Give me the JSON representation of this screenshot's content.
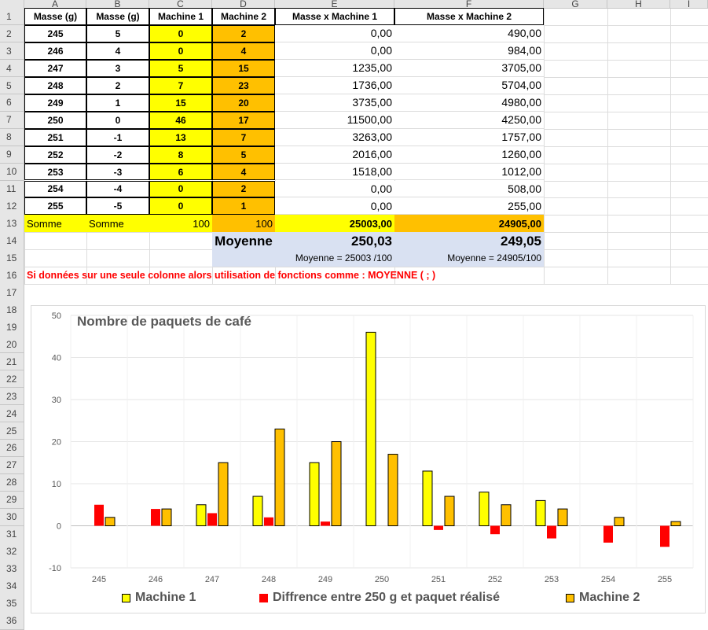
{
  "columns": [
    "A",
    "B",
    "C",
    "D",
    "E",
    "F",
    "G",
    "H",
    "I"
  ],
  "rows": [
    "1",
    "2",
    "3",
    "4",
    "5",
    "6",
    "7",
    "8",
    "9",
    "10",
    "11",
    "12",
    "13",
    "14",
    "15",
    "16",
    "17",
    "18",
    "19",
    "20",
    "21",
    "22",
    "23",
    "24",
    "25",
    "26",
    "27",
    "28",
    "29",
    "30",
    "31",
    "32",
    "33",
    "34",
    "35",
    "36"
  ],
  "headers": [
    "Masse (g)",
    "Masse (g)",
    "Machine 1",
    "Machine 2",
    "Masse x Machine 1",
    "Masse x Machine 2"
  ],
  "table": [
    [
      "245",
      "5",
      "0",
      "2",
      "0,00",
      "490,00"
    ],
    [
      "246",
      "4",
      "0",
      "4",
      "0,00",
      "984,00"
    ],
    [
      "247",
      "3",
      "5",
      "15",
      "1235,00",
      "3705,00"
    ],
    [
      "248",
      "2",
      "7",
      "23",
      "1736,00",
      "5704,00"
    ],
    [
      "249",
      "1",
      "15",
      "20",
      "3735,00",
      "4980,00"
    ],
    [
      "250",
      "0",
      "46",
      "17",
      "11500,00",
      "4250,00"
    ],
    [
      "251",
      "-1",
      "13",
      "7",
      "3263,00",
      "1757,00"
    ],
    [
      "252",
      "-2",
      "8",
      "5",
      "2016,00",
      "1260,00"
    ],
    [
      "253",
      "-3",
      "6",
      "4",
      "1518,00",
      "1012,00"
    ],
    [
      "254",
      "-4",
      "0",
      "2",
      "0,00",
      "508,00"
    ],
    [
      "255",
      "-5",
      "0",
      "1",
      "0,00",
      "255,00"
    ]
  ],
  "sum_row": {
    "a": "Somme",
    "b": "Somme",
    "c": "100",
    "d": "100",
    "e": "25003,00",
    "f": "24905,00"
  },
  "avg_row": {
    "label": "Moyenne",
    "e": "250,03",
    "f": "249,05"
  },
  "avg_formula": {
    "e": "Moyenne = 25003 /100",
    "f": "Moyenne = 24905/100"
  },
  "note": "Si données sur une seule colonne alors utilisation de fonctions comme : MOYENNE ( ;  )",
  "colors": {
    "machine1": "#ffff00",
    "machine2": "#ffc000",
    "diff": "#ff0000",
    "avg_bg": "#d9e1f2",
    "note": "#ff0000"
  },
  "chart_data": {
    "type": "bar",
    "title": "Nombre de paquets de café",
    "categories": [
      "245",
      "246",
      "247",
      "248",
      "249",
      "250",
      "251",
      "252",
      "253",
      "254",
      "255"
    ],
    "series": [
      {
        "name": "Machine 1",
        "values": [
          0,
          0,
          5,
          7,
          15,
          46,
          13,
          8,
          6,
          0,
          0
        ]
      },
      {
        "name": "Diffrence entre 250 g et paquet réalisé",
        "values": [
          5,
          4,
          3,
          2,
          1,
          0,
          -1,
          -2,
          -3,
          -4,
          -5
        ]
      },
      {
        "name": "Machine 2",
        "values": [
          2,
          4,
          15,
          23,
          20,
          17,
          7,
          5,
          4,
          2,
          1
        ]
      }
    ],
    "yticks": [
      "50",
      "40",
      "30",
      "20",
      "10",
      "0",
      "-10"
    ],
    "ylim": [
      -10,
      50
    ],
    "grid": "on",
    "legend": "bottom"
  }
}
